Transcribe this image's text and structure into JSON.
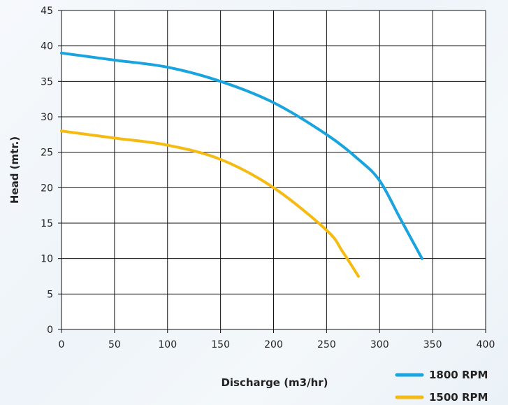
{
  "chart_data": {
    "type": "line",
    "title": "",
    "xlabel": "Discharge (m3/hr)",
    "ylabel": "Head (mtr.)",
    "xlim": [
      0,
      400
    ],
    "ylim": [
      0,
      45
    ],
    "xticks": [
      0,
      50,
      100,
      150,
      200,
      250,
      300,
      350,
      400
    ],
    "yticks": [
      0,
      5,
      10,
      15,
      20,
      25,
      30,
      35,
      40,
      45
    ],
    "grid": true,
    "legend_position": "bottom-right",
    "series": [
      {
        "name": "1800 RPM",
        "color": "#19a3df",
        "x": [
          0,
          50,
          100,
          150,
          200,
          250,
          280,
          300,
          320,
          340
        ],
        "y": [
          39,
          38,
          37,
          35,
          32,
          27.5,
          24,
          21,
          15.5,
          10
        ]
      },
      {
        "name": "1500 RPM",
        "color": "#f5bb13",
        "x": [
          0,
          50,
          100,
          150,
          200,
          250,
          265,
          280
        ],
        "y": [
          28,
          27,
          26,
          24,
          20,
          14,
          11,
          7.5
        ]
      }
    ]
  }
}
